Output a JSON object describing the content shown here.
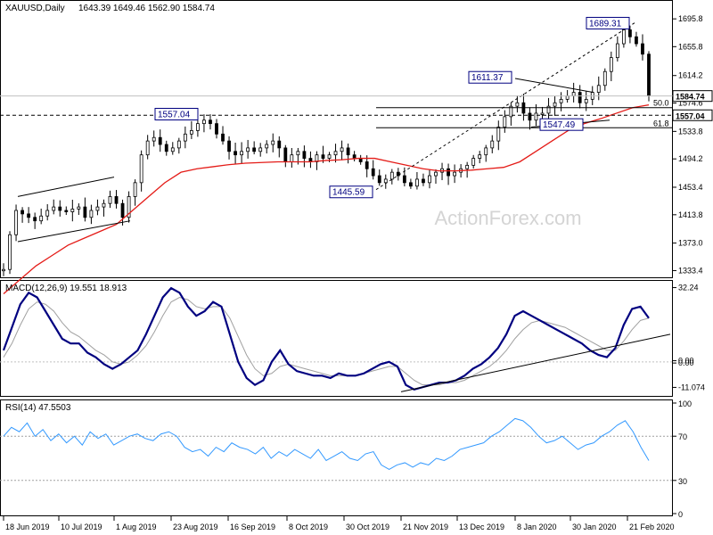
{
  "colors": {
    "background": "#ffffff",
    "candle": "#000000",
    "ma": "#e41b17",
    "macd": "#000080",
    "signal": "#a0a0a0",
    "rsi": "#3399ff",
    "label_border": "#000080",
    "label_text": "#000080",
    "watermark": "#d4d4d4"
  },
  "watermark": "ActionForex.com",
  "chart_data": [
    {
      "type": "candlestick",
      "title": "XAUUSD,Daily",
      "ohlc_header": "1643.39 1649.46 1562.90 1584.74",
      "x_ticks": [
        "18 Jun 2019",
        "10 Jul 2019",
        "1 Aug 2019",
        "23 Aug 2019",
        "16 Sep 2019",
        "8 Oct 2019",
        "30 Oct 2019",
        "21 Nov 2019",
        "13 Dec 2019",
        "8 Jan 2020",
        "30 Jan 2020",
        "21 Feb 2020"
      ],
      "y_ticks": [
        1695.8,
        1655.8,
        1614.2,
        1574.6,
        1533.8,
        1494.2,
        1453.4,
        1413.8,
        1373.0,
        1333.4
      ],
      "current_price_label": "1584.74",
      "level_label": "1557.04",
      "close_path": [
        1335,
        1385,
        1420,
        1415,
        1410,
        1405,
        1412,
        1420,
        1425,
        1420,
        1418,
        1422,
        1425,
        1410,
        1420,
        1425,
        1430,
        1440,
        1430,
        1410,
        1440,
        1460,
        1500,
        1520,
        1525,
        1515,
        1505,
        1510,
        1520,
        1530,
        1535,
        1545,
        1550,
        1545,
        1530,
        1520,
        1505,
        1500,
        1505,
        1510,
        1505,
        1510,
        1515,
        1520,
        1510,
        1490,
        1500,
        1505,
        1495,
        1490,
        1500,
        1495,
        1500,
        1505,
        1510,
        1500,
        1495,
        1490,
        1480,
        1470,
        1460,
        1465,
        1475,
        1470,
        1460,
        1455,
        1465,
        1460,
        1470,
        1475,
        1480,
        1470,
        1475,
        1480,
        1485,
        1495,
        1500,
        1510,
        1520,
        1540,
        1555,
        1570,
        1575,
        1560,
        1550,
        1560,
        1560,
        1570,
        1575,
        1580,
        1585,
        1590,
        1575,
        1580,
        1590,
        1600,
        1620,
        1640,
        1660,
        1680,
        1670,
        1660,
        1645,
        1585
      ],
      "ma_path": [
        1300,
        1320,
        1340,
        1355,
        1370,
        1380,
        1390,
        1400,
        1420,
        1440,
        1460,
        1475,
        1480,
        1483,
        1486,
        1488,
        1489,
        1490,
        1490,
        1490,
        1492,
        1493,
        1495,
        1495,
        1490,
        1485,
        1480,
        1477,
        1477,
        1478,
        1480,
        1482,
        1490,
        1505,
        1520,
        1535,
        1545,
        1552,
        1560,
        1568,
        1572
      ],
      "ma_name": "",
      "annotations": [
        {
          "text": "1689.31",
          "kind": "high"
        },
        {
          "text": "1611.37",
          "kind": "high"
        },
        {
          "text": "1557.04",
          "kind": "high"
        },
        {
          "text": "1547.49",
          "kind": "low"
        },
        {
          "text": "1445.59",
          "kind": "low"
        },
        {
          "text": "50.0",
          "kind": "fib"
        },
        {
          "text": "61.8",
          "kind": "fib"
        }
      ],
      "fib_levels": {
        "50.0": 1568,
        "61.8": 1539
      }
    },
    {
      "type": "line",
      "title": "MACD(12,26,9) 19.551 18.913",
      "y_ticks": [
        "32.24",
        "0.00",
        "0.00",
        "-11.074"
      ],
      "ylim": [
        -14,
        34
      ],
      "series": [
        {
          "name": "",
          "role": "macd",
          "values": [
            5,
            15,
            25,
            30,
            28,
            22,
            16,
            10,
            8,
            8,
            4,
            2,
            -1,
            -3,
            -1,
            2,
            5,
            12,
            20,
            28,
            32,
            30,
            24,
            20,
            22,
            26,
            24,
            12,
            0,
            -7,
            -10,
            -8,
            0,
            5,
            -1,
            -4,
            -5,
            -6,
            -6,
            -7,
            -5,
            -6,
            -6,
            -5,
            -3,
            -1,
            0,
            -2,
            -10,
            -12,
            -11,
            -10,
            -9,
            -9,
            -8,
            -6,
            -3,
            -1,
            2,
            6,
            12,
            20,
            22,
            20,
            18,
            16,
            14,
            12,
            10,
            8,
            5,
            3,
            2,
            6,
            16,
            23,
            24,
            19
          ]
        },
        {
          "name": "",
          "role": "signal",
          "values": [
            2,
            8,
            16,
            23,
            26,
            25,
            22,
            17,
            13,
            11,
            8,
            5,
            3,
            0,
            -1,
            0,
            3,
            7,
            13,
            20,
            26,
            28,
            27,
            24,
            23,
            24,
            24,
            19,
            11,
            3,
            -3,
            -6,
            -5,
            -2,
            -1,
            -2,
            -3,
            -4,
            -5,
            -6,
            -6,
            -6,
            -6,
            -5,
            -4,
            -3,
            -2,
            -2,
            -5,
            -8,
            -10,
            -10,
            -10,
            -9,
            -9,
            -8,
            -6,
            -4,
            -2,
            1,
            5,
            10,
            14,
            17,
            18,
            17,
            16,
            15,
            13,
            11,
            9,
            7,
            5,
            5,
            9,
            14,
            18,
            19
          ]
        }
      ],
      "trendline": "rising"
    },
    {
      "type": "line",
      "title": "RSI(14) 47.5503",
      "y_ticks": [
        "100",
        "70",
        "30",
        "0"
      ],
      "ylim": [
        0,
        100
      ],
      "series": [
        {
          "name": "",
          "values": [
            70,
            78,
            74,
            82,
            70,
            76,
            66,
            72,
            64,
            70,
            62,
            74,
            68,
            72,
            62,
            66,
            70,
            72,
            68,
            66,
            72,
            74,
            70,
            60,
            56,
            58,
            52,
            60,
            56,
            64,
            60,
            58,
            54,
            60,
            50,
            56,
            52,
            58,
            54,
            50,
            58,
            48,
            52,
            56,
            50,
            48,
            54,
            56,
            44,
            40,
            44,
            46,
            42,
            46,
            44,
            50,
            48,
            52,
            58,
            60,
            62,
            64,
            70,
            74,
            80,
            86,
            84,
            78,
            70,
            64,
            66,
            70,
            64,
            58,
            62,
            64,
            70,
            74,
            80,
            84,
            74,
            60,
            48
          ]
        }
      ]
    }
  ]
}
